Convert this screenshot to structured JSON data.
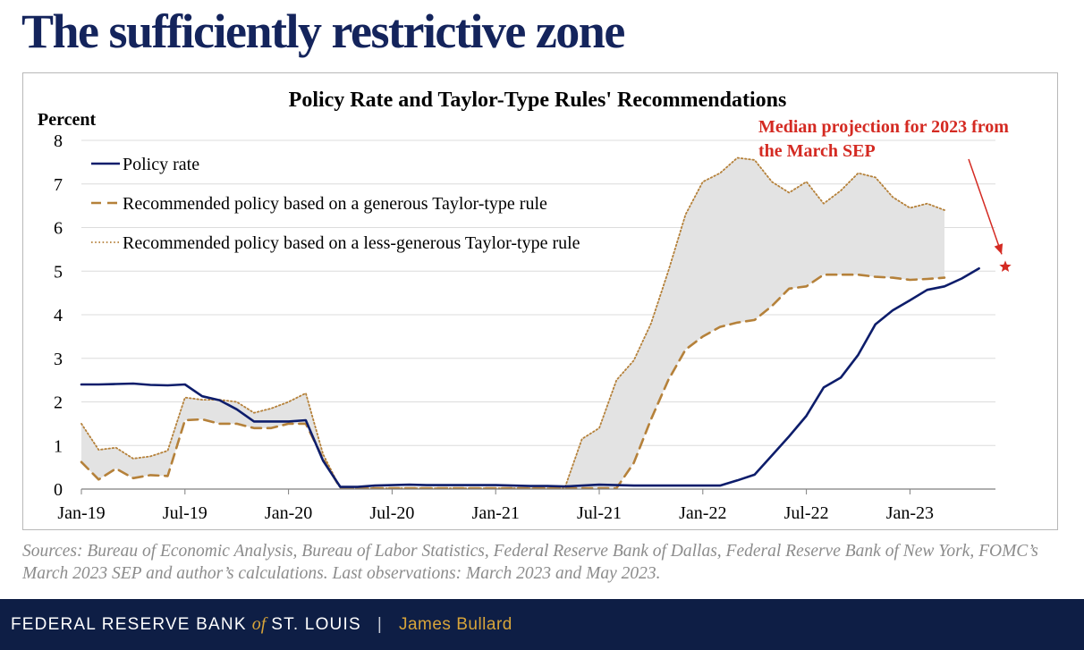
{
  "slide": {
    "title": "The sufficiently restrictive zone",
    "sources": "Sources: Bureau of Economic Analysis, Bureau of Labor Statistics, Federal Reserve Bank of Dallas, Federal Reserve Bank of New York, FOMC’s March 2023 SEP and author’s calculations. Last observations: March 2023 and May 2023."
  },
  "footer": {
    "org_prefix": "FEDERAL RESERVE BANK",
    "org_of": "of",
    "org_suffix": "ST. LOUIS",
    "separator": "|",
    "author": "James Bullard"
  },
  "colors": {
    "title": "#14245c",
    "policy_rate": "#0d1d6b",
    "generous": "#b5813a",
    "less_generous": "#b5813a",
    "band_fill": "#e3e3e3",
    "annotation": "#d42a22",
    "footer_bg": "#0e1e45",
    "footer_accent": "#d7a43a"
  },
  "chart_data": {
    "type": "line",
    "title": "Policy Rate and Taylor-Type Rules' Recommendations",
    "ylabel": "Percent",
    "ylim": [
      0,
      8
    ],
    "yticks": [
      "0",
      "1",
      "2",
      "3",
      "4",
      "5",
      "6",
      "7",
      "8"
    ],
    "xticks": [
      "Jan-19",
      "Jul-19",
      "Jan-20",
      "Jul-20",
      "Jan-21",
      "Jul-21",
      "Jan-22",
      "Jul-22",
      "Jan-23"
    ],
    "grid": "horizontal",
    "legend_position": "top-left",
    "series": [
      {
        "name": "Policy rate",
        "style": "solid",
        "x": [
          "2019-01",
          "2019-02",
          "2019-03",
          "2019-04",
          "2019-05",
          "2019-06",
          "2019-07",
          "2019-08",
          "2019-09",
          "2019-10",
          "2019-11",
          "2019-12",
          "2020-01",
          "2020-02",
          "2020-03",
          "2020-04",
          "2020-05",
          "2020-06",
          "2020-07",
          "2020-08",
          "2020-09",
          "2020-10",
          "2020-11",
          "2020-12",
          "2021-01",
          "2021-02",
          "2021-03",
          "2021-04",
          "2021-05",
          "2021-06",
          "2021-07",
          "2021-08",
          "2021-09",
          "2021-10",
          "2021-11",
          "2021-12",
          "2022-01",
          "2022-02",
          "2022-03",
          "2022-04",
          "2022-05",
          "2022-06",
          "2022-07",
          "2022-08",
          "2022-09",
          "2022-10",
          "2022-11",
          "2022-12",
          "2023-01",
          "2023-02",
          "2023-03",
          "2023-04",
          "2023-05"
        ],
        "values": [
          2.4,
          2.4,
          2.41,
          2.42,
          2.39,
          2.38,
          2.4,
          2.13,
          2.04,
          1.83,
          1.55,
          1.55,
          1.55,
          1.58,
          0.65,
          0.05,
          0.05,
          0.08,
          0.09,
          0.1,
          0.09,
          0.09,
          0.09,
          0.09,
          0.09,
          0.08,
          0.07,
          0.07,
          0.06,
          0.08,
          0.1,
          0.09,
          0.08,
          0.08,
          0.08,
          0.08,
          0.08,
          0.08,
          0.2,
          0.33,
          0.77,
          1.21,
          1.68,
          2.33,
          2.56,
          3.08,
          3.78,
          4.1,
          4.33,
          4.57,
          4.65,
          4.83,
          5.06
        ]
      },
      {
        "name": "Recommended policy based on a generous Taylor-type rule",
        "style": "dashed",
        "x": [
          "2019-01",
          "2019-02",
          "2019-03",
          "2019-04",
          "2019-05",
          "2019-06",
          "2019-07",
          "2019-08",
          "2019-09",
          "2019-10",
          "2019-11",
          "2019-12",
          "2020-01",
          "2020-02",
          "2020-03",
          "2020-04",
          "2020-05",
          "2020-06",
          "2020-07",
          "2020-08",
          "2020-09",
          "2020-10",
          "2020-11",
          "2020-12",
          "2021-01",
          "2021-02",
          "2021-03",
          "2021-04",
          "2021-05",
          "2021-06",
          "2021-07",
          "2021-08",
          "2021-09",
          "2021-10",
          "2021-11",
          "2021-12",
          "2022-01",
          "2022-02",
          "2022-03",
          "2022-04",
          "2022-05",
          "2022-06",
          "2022-07",
          "2022-08",
          "2022-09",
          "2022-10",
          "2022-11",
          "2022-12",
          "2023-01",
          "2023-02",
          "2023-03"
        ],
        "values": [
          0.62,
          0.22,
          0.47,
          0.25,
          0.32,
          0.3,
          1.58,
          1.6,
          1.5,
          1.5,
          1.4,
          1.4,
          1.5,
          1.5,
          0.7,
          0.02,
          0.02,
          0.02,
          0.02,
          0.02,
          0.02,
          0.02,
          0.02,
          0.02,
          0.02,
          0.02,
          0.02,
          0.02,
          0.02,
          0.02,
          0.02,
          0.02,
          0.6,
          1.6,
          2.5,
          3.2,
          3.5,
          3.72,
          3.82,
          3.88,
          4.2,
          4.6,
          4.65,
          4.92,
          4.92,
          4.92,
          4.87,
          4.85,
          4.8,
          4.82,
          4.85
        ]
      },
      {
        "name": "Recommended policy based on a less-generous Taylor-type rule",
        "style": "dotted",
        "x": [
          "2019-01",
          "2019-02",
          "2019-03",
          "2019-04",
          "2019-05",
          "2019-06",
          "2019-07",
          "2019-08",
          "2019-09",
          "2019-10",
          "2019-11",
          "2019-12",
          "2020-01",
          "2020-02",
          "2020-03",
          "2020-04",
          "2020-05",
          "2020-06",
          "2020-07",
          "2020-08",
          "2020-09",
          "2020-10",
          "2020-11",
          "2020-12",
          "2021-01",
          "2021-02",
          "2021-03",
          "2021-04",
          "2021-05",
          "2021-06",
          "2021-07",
          "2021-08",
          "2021-09",
          "2021-10",
          "2021-11",
          "2021-12",
          "2022-01",
          "2022-02",
          "2022-03",
          "2022-04",
          "2022-05",
          "2022-06",
          "2022-07",
          "2022-08",
          "2022-09",
          "2022-10",
          "2022-11",
          "2022-12",
          "2023-01",
          "2023-02",
          "2023-03"
        ],
        "values": [
          1.5,
          0.9,
          0.95,
          0.7,
          0.75,
          0.88,
          2.1,
          2.05,
          2.05,
          2.0,
          1.75,
          1.85,
          2.0,
          2.2,
          0.8,
          0.02,
          0.02,
          0.02,
          0.02,
          0.02,
          0.02,
          0.02,
          0.02,
          0.02,
          0.02,
          0.02,
          0.02,
          0.02,
          0.02,
          1.15,
          1.4,
          2.5,
          2.95,
          3.8,
          5.0,
          6.3,
          7.05,
          7.25,
          7.6,
          7.55,
          7.05,
          6.8,
          7.05,
          6.55,
          6.85,
          7.25,
          7.15,
          6.7,
          6.45,
          6.55,
          6.4
        ]
      }
    ],
    "annotation": {
      "text_line1": "Median projection for 2023 from",
      "text_line2": "the March SEP",
      "value": 5.1,
      "marker": "star-icon"
    }
  }
}
